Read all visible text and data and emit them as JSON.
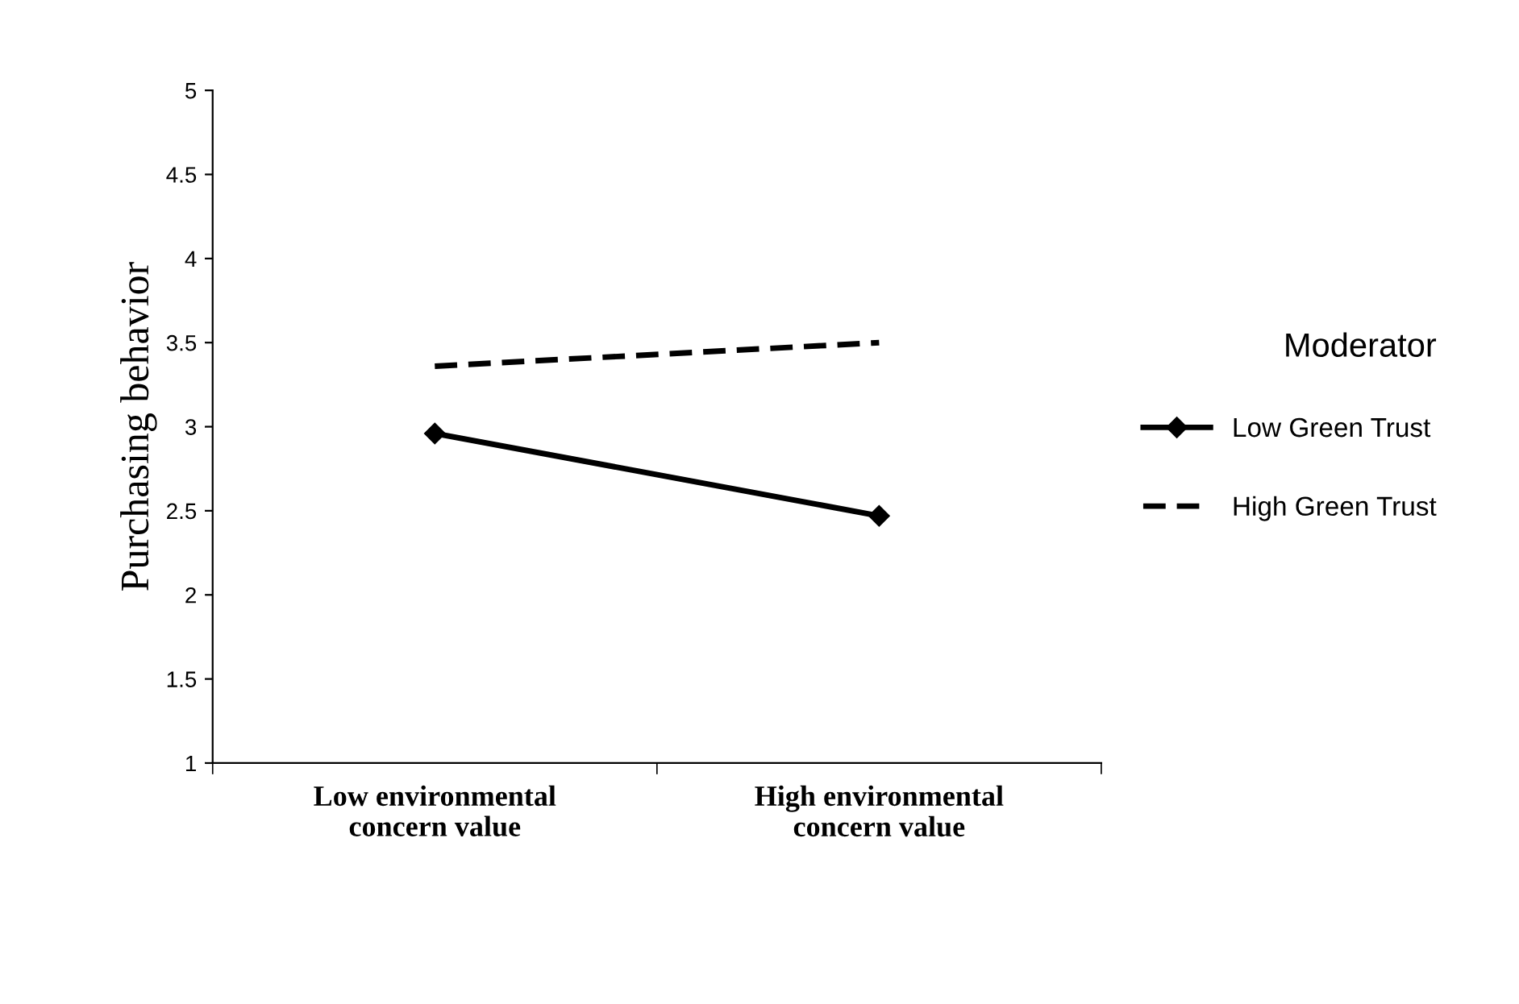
{
  "chart_data": {
    "type": "line",
    "ylabel": "Purchasing behavior",
    "legend_title": "Moderator",
    "legend": "right",
    "categories": [
      "Low environmental\nconcern value",
      "High environmental\nconcern value"
    ],
    "ylim": [
      1,
      5
    ],
    "yticks": [
      1,
      1.5,
      2,
      2.5,
      3,
      3.5,
      4,
      4.5,
      5
    ],
    "grid": false,
    "series": [
      {
        "name": "Low Green Trust",
        "color": "#000000",
        "values": [
          2.96,
          2.47
        ],
        "marker": "diamond",
        "line_style": "solid"
      },
      {
        "name": "High Green Trust",
        "color": "#000000",
        "values": [
          3.36,
          3.5
        ],
        "marker": "none",
        "line_style": "dashed"
      }
    ]
  }
}
